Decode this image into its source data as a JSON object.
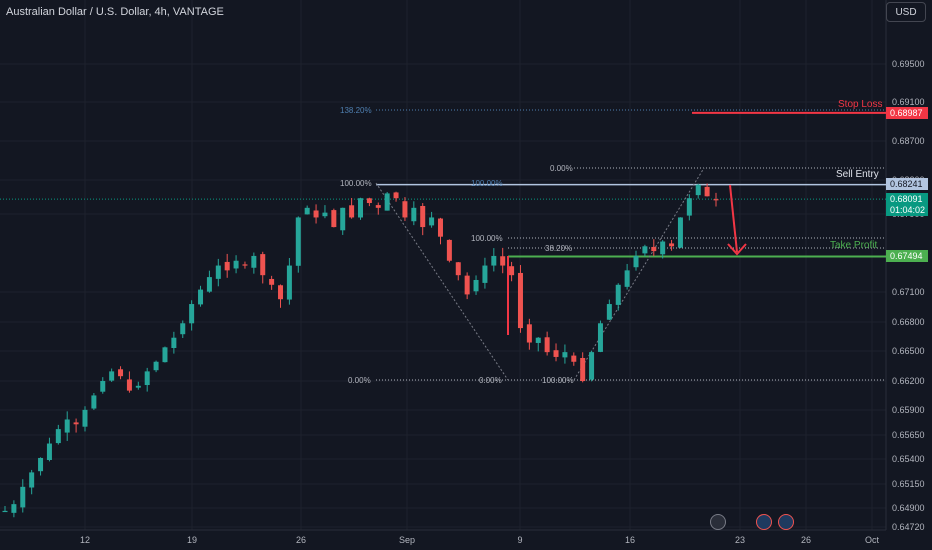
{
  "header": {
    "title": "Australian Dollar / U.S. Dollar, 4h, VANTAGE",
    "currency_button": "USD"
  },
  "chart_data": {
    "type": "candlestick",
    "title": "Australian Dollar / U.S. Dollar, 4h, VANTAGE",
    "y_ticks": [
      "0.69500",
      "0.69100",
      "0.68700",
      "0.68200",
      "0.67900",
      "0.67100",
      "0.66800",
      "0.66500",
      "0.66200",
      "0.65900",
      "0.65650",
      "0.65400",
      "0.65150",
      "0.64900",
      "0.64720"
    ],
    "x_ticks": [
      "12",
      "19",
      "26",
      "Sep",
      "9",
      "16",
      "23",
      "26",
      "Oct"
    ],
    "levels": {
      "stop_loss": {
        "label": "Stop Loss",
        "price": "0.68987"
      },
      "sell_entry": {
        "label": "Sell Entry",
        "price": "0.68241"
      },
      "take_profit": {
        "label": "Take Profit",
        "price": "0.67494"
      },
      "current": {
        "price": "0.68091",
        "countdown": "01:04:02"
      }
    },
    "fib_left": {
      "p100": "100.00%",
      "p0": "0.00%",
      "p0_mid": "0.00%",
      "p138": "138.20%",
      "p_mid": "100.00%"
    },
    "fib_right": {
      "p0": "0.00%",
      "p382": "38.20%",
      "p100": "100.00%",
      "p100b": "100.00%"
    },
    "colors": {
      "up": "#26a69a",
      "down": "#ef5350",
      "stop": "#f23645",
      "take": "#4caf50",
      "entry": "#b2c5e0",
      "bg": "#131722"
    },
    "candle_path": [
      0.6485,
      0.6492,
      0.651,
      0.6525,
      0.654,
      0.6555,
      0.657,
      0.658,
      0.6575,
      0.659,
      0.6605,
      0.662,
      0.663,
      0.6625,
      0.661,
      0.6615,
      0.663,
      0.664,
      0.6655,
      0.6665,
      0.668,
      0.67,
      0.6715,
      0.6728,
      0.674,
      0.6735,
      0.6745,
      0.674,
      0.675,
      0.673,
      0.672,
      0.6705,
      0.674,
      0.679,
      0.68,
      0.679,
      0.6795,
      0.678,
      0.68,
      0.679,
      0.681,
      0.6805,
      0.68,
      0.6815,
      0.681,
      0.679,
      0.68,
      0.678,
      0.679,
      0.677,
      0.6745,
      0.673,
      0.671,
      0.6725,
      0.674,
      0.675,
      0.674,
      0.673,
      0.6675,
      0.666,
      0.6665,
      0.665,
      0.6645,
      0.665,
      0.664,
      0.662,
      0.665,
      0.668,
      0.67,
      0.672,
      0.6735,
      0.675,
      0.676,
      0.6755,
      0.6765,
      0.676,
      0.679,
      0.681,
      0.6824,
      0.6812,
      0.6809
    ]
  }
}
